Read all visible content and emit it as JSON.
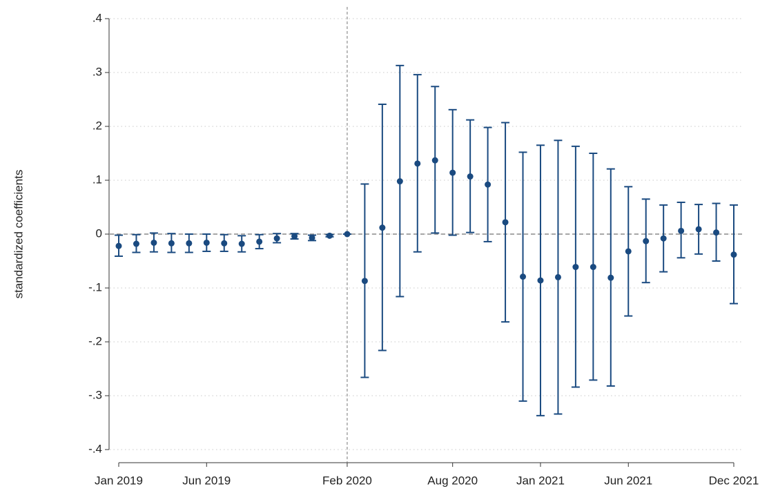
{
  "chart_data": {
    "type": "coefplot",
    "ylabel": "standardized coefficients",
    "categories": [
      "Jan 2019",
      null,
      null,
      null,
      null,
      "Jun 2019",
      null,
      null,
      null,
      null,
      null,
      null,
      null,
      "Feb 2020",
      null,
      null,
      null,
      null,
      null,
      "Aug 2020",
      null,
      null,
      null,
      null,
      "Jan 2021",
      null,
      null,
      null,
      null,
      "Jun 2021",
      null,
      null,
      null,
      null,
      null,
      "Dec 2021"
    ],
    "values": [
      -0.022,
      -0.018,
      -0.016,
      -0.017,
      -0.017,
      -0.016,
      -0.017,
      -0.018,
      -0.014,
      -0.008,
      -0.004,
      -0.007,
      -0.003,
      0,
      -0.087,
      0.012,
      0.098,
      0.131,
      0.137,
      0.114,
      0.107,
      0.092,
      0.022,
      -0.079,
      -0.086,
      -0.08,
      -0.061,
      -0.061,
      -0.081,
      -0.032,
      -0.013,
      -0.008,
      0.006,
      0.009,
      0.003,
      -0.038
    ],
    "ci_low": [
      -0.041,
      -0.034,
      -0.033,
      -0.034,
      -0.034,
      -0.032,
      -0.032,
      -0.033,
      -0.027,
      -0.016,
      -0.009,
      -0.012,
      -0.005,
      0,
      -0.266,
      -0.216,
      -0.116,
      -0.033,
      0.002,
      -0.002,
      0.003,
      -0.014,
      -0.163,
      -0.31,
      -0.337,
      -0.334,
      -0.284,
      -0.271,
      -0.282,
      -0.152,
      -0.09,
      -0.07,
      -0.044,
      -0.037,
      -0.05,
      -0.129
    ],
    "ci_high": [
      -0.002,
      -0.001,
      0.002,
      0.001,
      0.0,
      0.0,
      -0.001,
      -0.003,
      -0.001,
      0.001,
      0.001,
      -0.002,
      -0.001,
      0,
      0.093,
      0.241,
      0.313,
      0.296,
      0.274,
      0.231,
      0.212,
      0.198,
      0.207,
      0.152,
      0.165,
      0.174,
      0.163,
      0.15,
      0.121,
      0.088,
      0.065,
      0.054,
      0.059,
      0.055,
      0.057,
      0.054
    ],
    "color": "#1a4a80",
    "ylim": [
      -0.4,
      0.4
    ],
    "yticks": [
      {
        "value": -0.4,
        "label": "-.4"
      },
      {
        "value": -0.3,
        "label": "-.3"
      },
      {
        "value": -0.2,
        "label": "-.2"
      },
      {
        "value": -0.1,
        "label": "-.1"
      },
      0,
      {
        "value": 0.1,
        "label": ".1"
      },
      {
        "value": 0.2,
        "label": ".2"
      },
      {
        "value": 0.3,
        "label": ".3"
      },
      {
        "value": 0.4,
        "label": ".4"
      }
    ],
    "grid": true,
    "reference_y": 0,
    "reference_x": "Feb 2020"
  }
}
